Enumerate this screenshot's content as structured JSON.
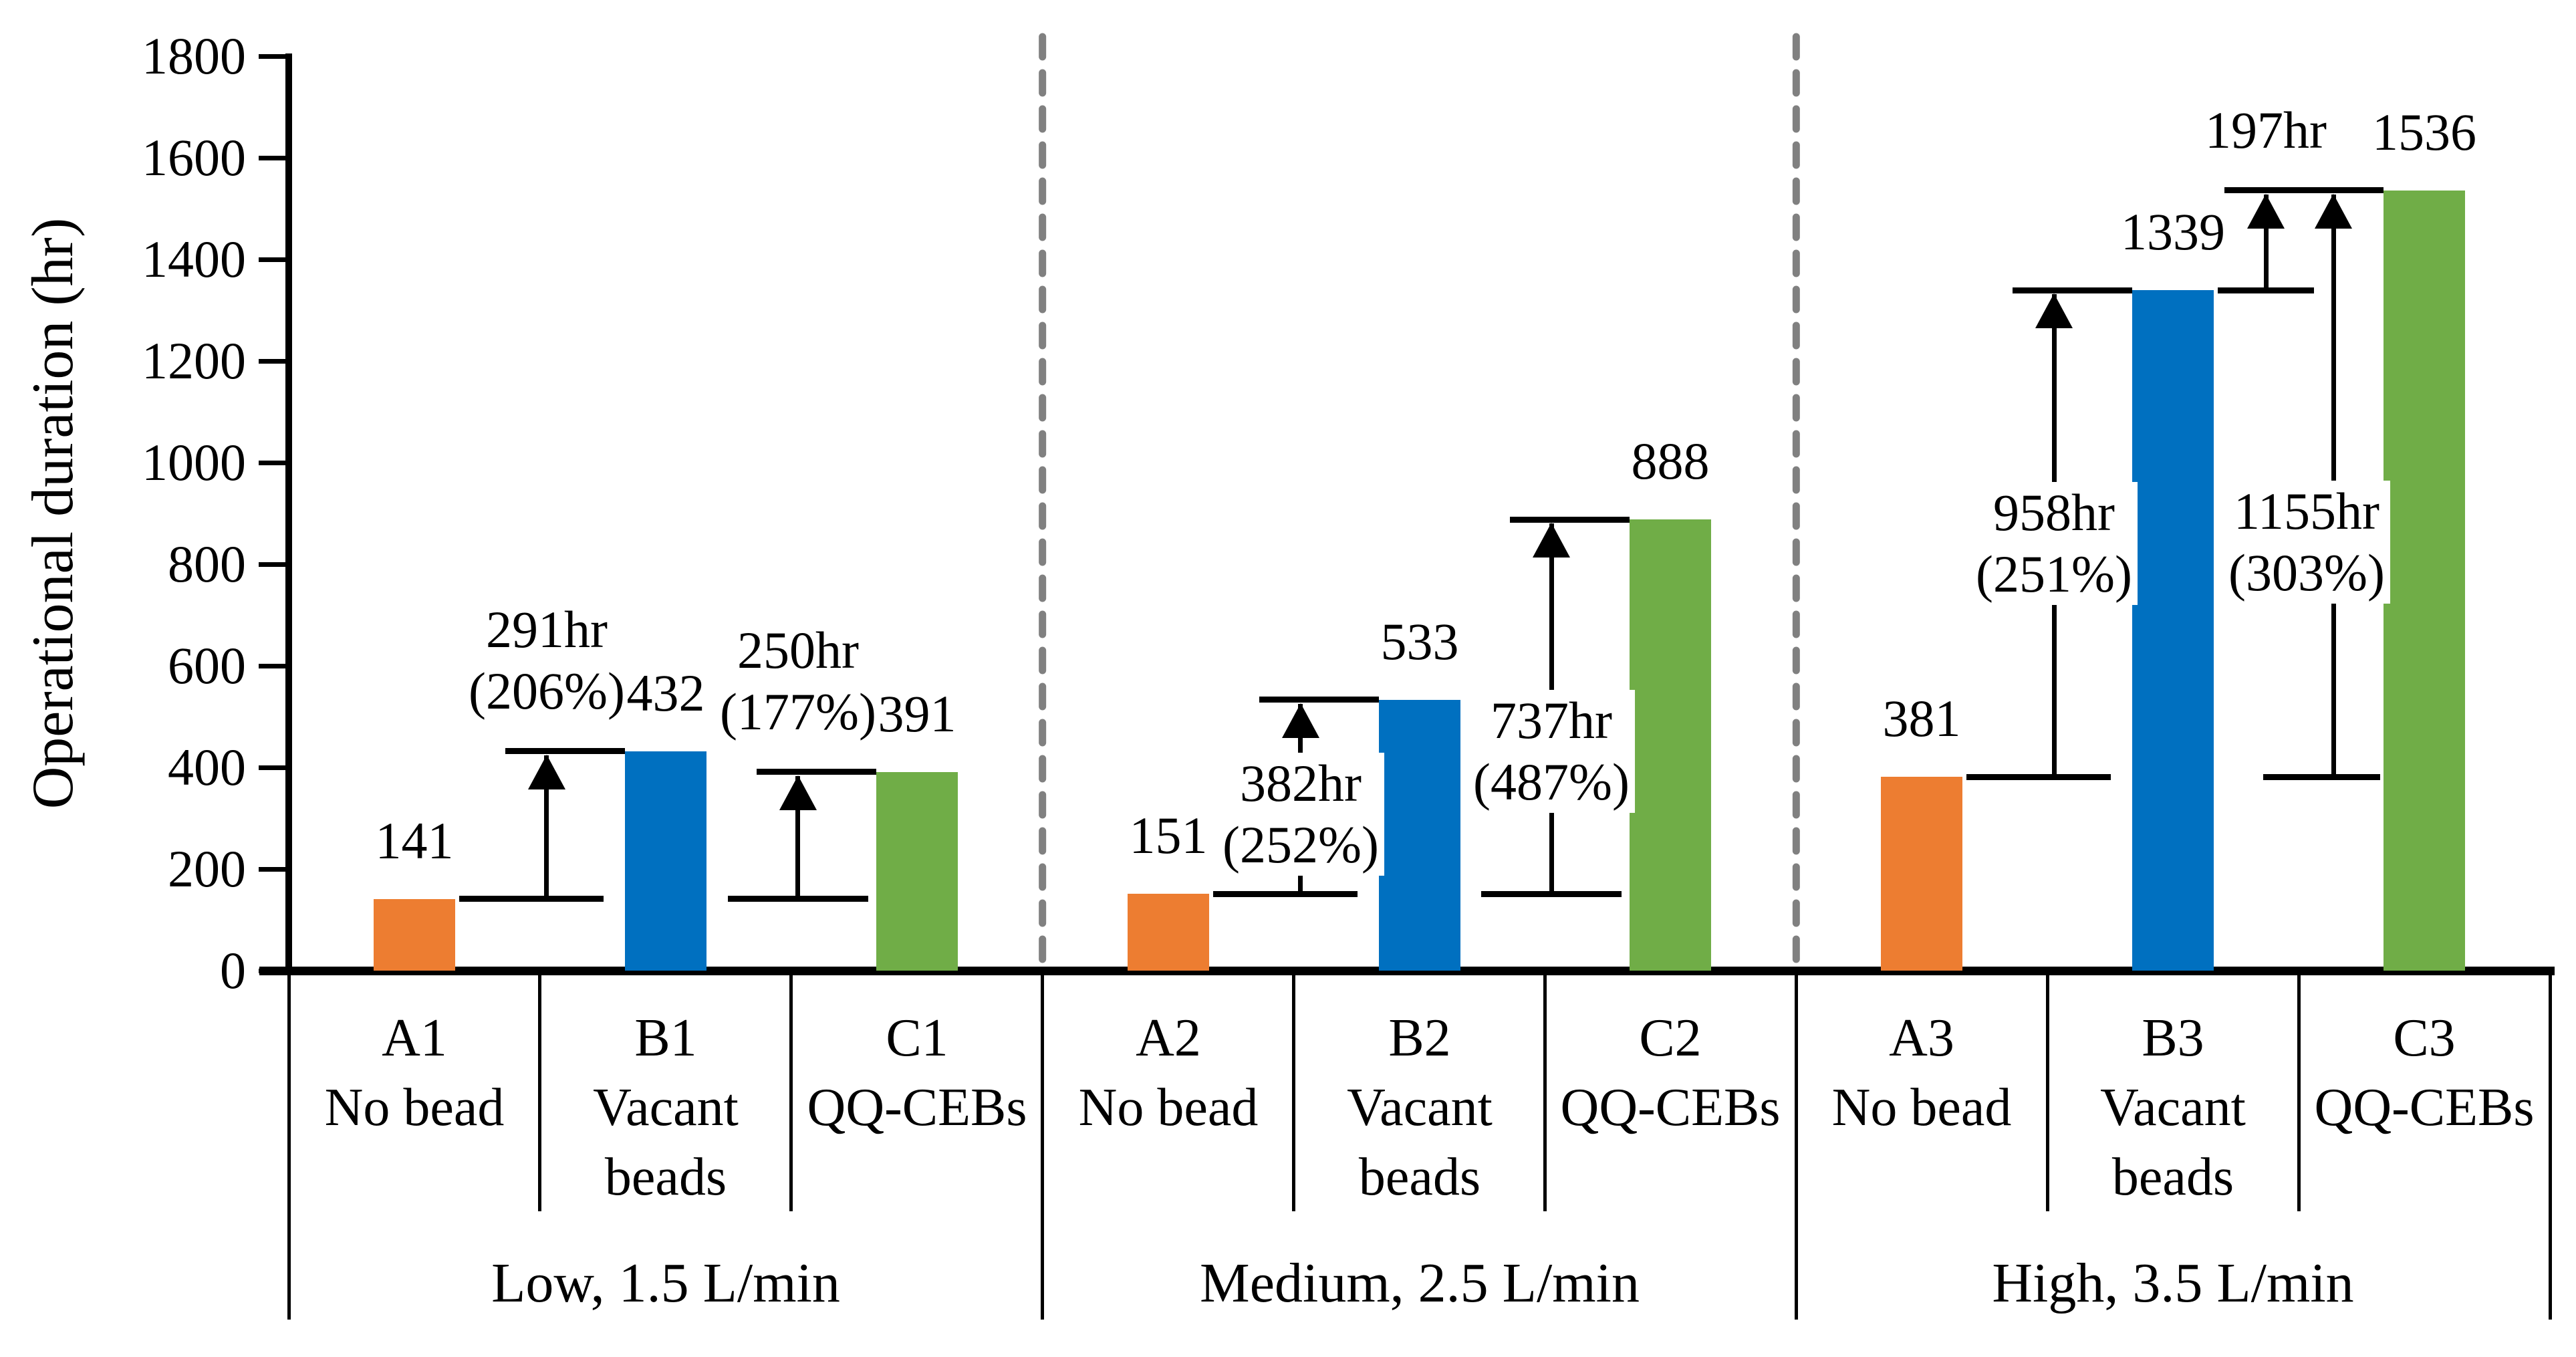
{
  "chart_data": {
    "type": "bar",
    "title": "",
    "ylabel": "Operational duration (hr)",
    "xlabel": "",
    "ylim": [
      0,
      1800
    ],
    "yticks": [
      0,
      200,
      400,
      600,
      800,
      1000,
      1200,
      1400,
      1600,
      1800
    ],
    "grid": false,
    "legend": "none",
    "colors": {
      "no_bead": "#ED7D31",
      "vacant_beads": "#0070C0",
      "qq_cebs": "#70AD47"
    },
    "separator_color": "#808080",
    "axis_color": "#000000",
    "groups": [
      {
        "label": "Low, 1.5 L/min",
        "bars": [
          {
            "code": "A1",
            "category_lines": [
              "No bead"
            ],
            "series": "no_bead",
            "value": 141
          },
          {
            "code": "B1",
            "category_lines": [
              "Vacant",
              "beads"
            ],
            "series": "vacant_beads",
            "value": 432
          },
          {
            "code": "C1",
            "category_lines": [
              "QQ-CEBs"
            ],
            "series": "qq_cebs",
            "value": 391
          }
        ],
        "annotations": [
          {
            "base": 0,
            "target": 1,
            "lines": [
              "291hr",
              "(206%)"
            ],
            "label_pos": "above"
          },
          {
            "base": 0,
            "target": 2,
            "lines": [
              "250hr",
              "(177%)"
            ],
            "label_pos": "above"
          }
        ]
      },
      {
        "label": "Medium, 2.5 L/min",
        "bars": [
          {
            "code": "A2",
            "category_lines": [
              "No bead"
            ],
            "series": "no_bead",
            "value": 151
          },
          {
            "code": "B2",
            "category_lines": [
              "Vacant",
              "beads"
            ],
            "series": "vacant_beads",
            "value": 533
          },
          {
            "code": "C2",
            "category_lines": [
              "QQ-CEBs"
            ],
            "series": "qq_cebs",
            "value": 888
          }
        ],
        "annotations": [
          {
            "base": 0,
            "target": 1,
            "lines": [
              "382hr",
              "(252%)"
            ],
            "label_pos": "mid",
            "label_frac": 0.59
          },
          {
            "base": 0,
            "target": 2,
            "lines": [
              "737hr",
              "(487%)"
            ],
            "label_pos": "mid",
            "label_frac": 0.62
          }
        ]
      },
      {
        "label": "High, 3.5 L/min",
        "bars": [
          {
            "code": "A3",
            "category_lines": [
              "No bead"
            ],
            "series": "no_bead",
            "value": 381
          },
          {
            "code": "B3",
            "category_lines": [
              "Vacant",
              "beads"
            ],
            "series": "vacant_beads",
            "value": 1339
          },
          {
            "code": "C3",
            "category_lines": [
              "QQ-CEBs"
            ],
            "series": "qq_cebs",
            "value": 1536
          }
        ],
        "annotations": [
          {
            "base": 0,
            "target": 1,
            "lines": [
              "958hr",
              "(251%)"
            ],
            "label_pos": "mid",
            "label_frac": 0.52
          },
          {
            "base": 1,
            "target": 2,
            "lines": [
              "197hr"
            ],
            "label_pos": "above",
            "variant": "right_of_base"
          },
          {
            "base": 0,
            "target": 2,
            "lines": [
              "1155hr",
              "(303%)"
            ],
            "label_pos": "mid",
            "label_frac": 0.6,
            "arrow_dx": 42,
            "label_dx": -40
          }
        ]
      }
    ]
  }
}
